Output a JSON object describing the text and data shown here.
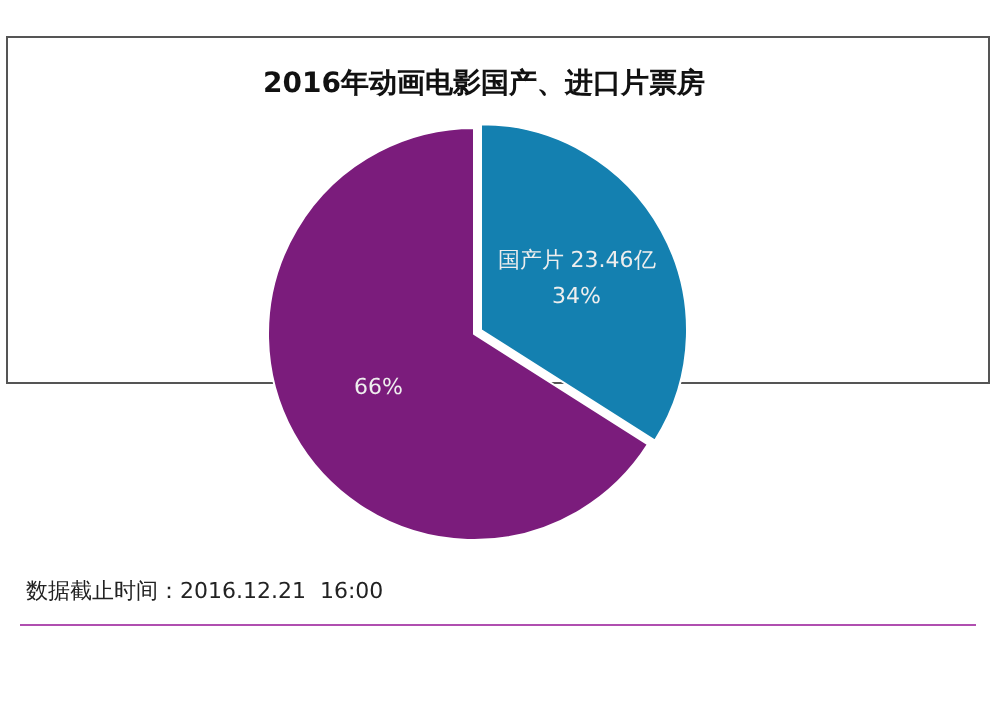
{
  "chart_data": {
    "type": "pie",
    "title": "2016年动画电影国产、进口片票房",
    "categories": [
      "国产片",
      null
    ],
    "values": [
      34,
      66
    ],
    "value_labels": [
      "23.46亿\n34%",
      "66%"
    ],
    "colors": [
      "#1480b0",
      "#7b1c7c"
    ],
    "annotations": [
      "数据截止时间：2016.12.21  16:00"
    ],
    "legend": false
  }
}
